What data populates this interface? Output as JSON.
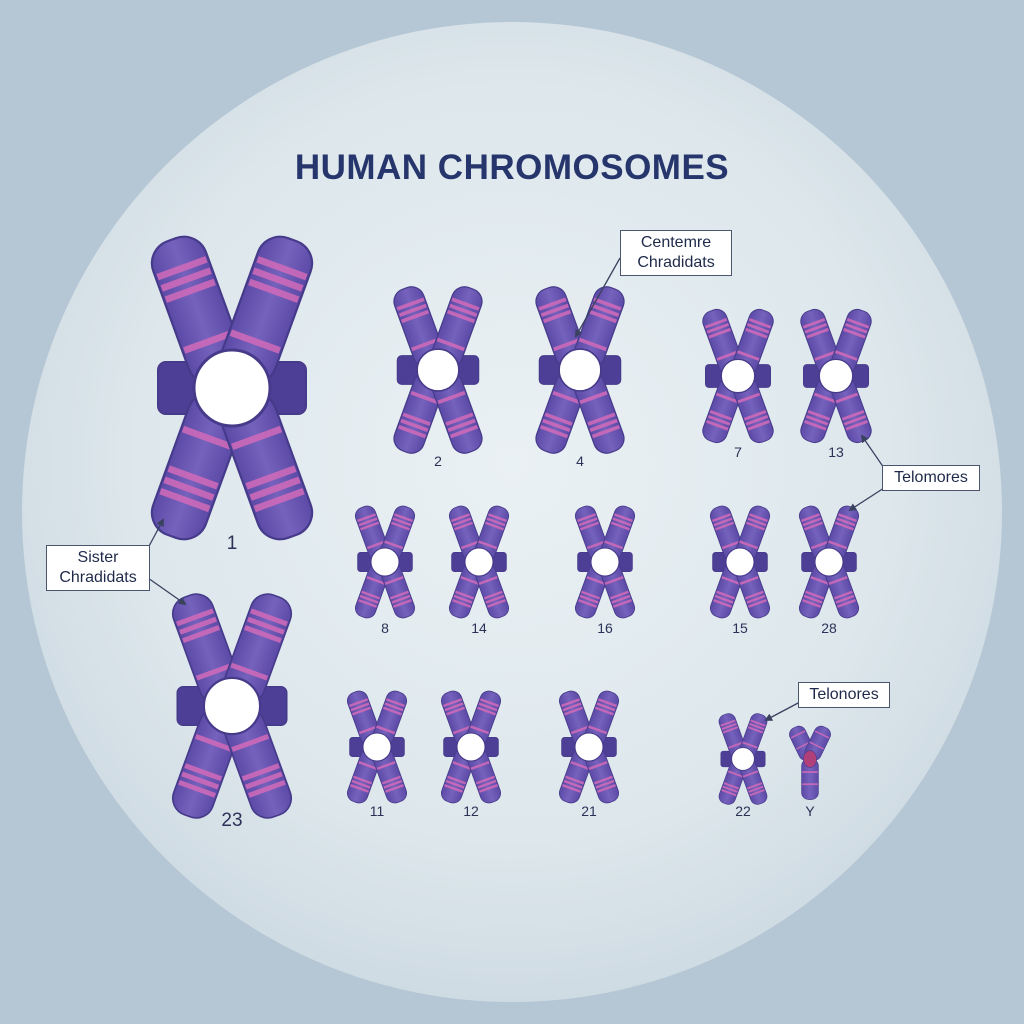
{
  "title": "HUMAN CHROMOSOMES",
  "colors": {
    "chromatid": "#6a58b0",
    "chromatid_dark": "#463a8a",
    "band": "#d26bb8",
    "centromere": "#ffffff",
    "centromere_y": "#b0407a",
    "background": "#b5c6d4",
    "circle": "#e4ecf0",
    "title": "#26356b"
  },
  "chromosomes": [
    {
      "id": "1",
      "label": "1"
    },
    {
      "id": "23",
      "label": "23"
    },
    {
      "id": "2",
      "label": "2"
    },
    {
      "id": "4",
      "label": "4"
    },
    {
      "id": "7",
      "label": "7"
    },
    {
      "id": "13",
      "label": "13"
    },
    {
      "id": "8",
      "label": "8"
    },
    {
      "id": "14",
      "label": "14"
    },
    {
      "id": "16",
      "label": "16"
    },
    {
      "id": "15",
      "label": "15"
    },
    {
      "id": "28",
      "label": "28"
    },
    {
      "id": "11",
      "label": "11"
    },
    {
      "id": "12",
      "label": "12"
    },
    {
      "id": "21",
      "label": "21"
    },
    {
      "id": "22",
      "label": "22"
    },
    {
      "id": "Y",
      "label": "Y"
    }
  ],
  "callouts": {
    "centromere": [
      "Centemre",
      "Chradidats"
    ],
    "sister": [
      "Sister",
      "Chradidats"
    ],
    "telomeres_1": [
      "Telomores"
    ],
    "telomeres_2": [
      "Telonores"
    ]
  }
}
